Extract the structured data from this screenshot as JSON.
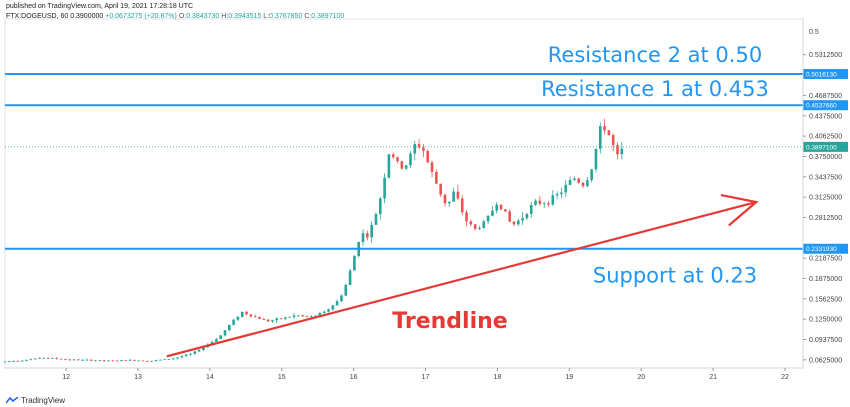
{
  "header": {
    "published": "published on TradingView.com, April 19, 2021 17:28:18 UTC",
    "symbol": "FTX:DOGEUSD, 60",
    "last": "0.3900000",
    "change": "+0.0673275 (+20.87%)",
    "o_label": "O:",
    "o": "0.3843730",
    "h_label": "H:",
    "h": "0.3943515",
    "l_label": "L:",
    "l": "0.3767850",
    "c_label": "C:",
    "c": "0.3897100"
  },
  "footer": {
    "brand": "TradingView",
    "logo": "tradingview-logo"
  },
  "colors": {
    "level": "#2196f3",
    "trend": "#e53935",
    "up": "#26a69a",
    "down": "#ef5350",
    "price": "#26a69a"
  },
  "chart_data": {
    "type": "candlestick",
    "y_ticks": [
      "0.5312500",
      "0.4687500",
      "0.4375000",
      "0.4062500",
      "0.3750000",
      "0.3437500",
      "0.3125000",
      "0.2812500",
      "0.2187500",
      "0.1875000",
      "0.1562500",
      "0.1250000",
      "0.0937500",
      "0.0625000"
    ],
    "y_top_label": "0.5",
    "ylim": [
      0.05,
      0.58
    ],
    "x_ticks": [
      "12",
      "13",
      "14",
      "15",
      "16",
      "17",
      "18",
      "19",
      "20",
      "21",
      "22"
    ],
    "levels": [
      {
        "value": 0.5016,
        "badge": "0.5016130",
        "label": "Resistance 2 at 0.50"
      },
      {
        "value": 0.4537,
        "badge": "0.4537660",
        "label": "Resistance 1 at 0.453"
      },
      {
        "value": 0.2332,
        "badge": "0.2331930",
        "label": "Support at 0.23"
      }
    ],
    "current_price": {
      "value": 0.3897,
      "badge": "0.3897100"
    },
    "trendline": {
      "label": "Trendline",
      "start": [
        13.4,
        0.068
      ],
      "end": [
        21.6,
        0.305
      ]
    },
    "x_range": [
      11.15,
      22.25
    ],
    "price_path": [
      [
        11.15,
        0.06
      ],
      [
        11.4,
        0.062
      ],
      [
        11.7,
        0.066
      ],
      [
        12.0,
        0.063
      ],
      [
        12.3,
        0.062
      ],
      [
        12.6,
        0.061
      ],
      [
        12.9,
        0.062
      ],
      [
        13.2,
        0.061
      ],
      [
        13.5,
        0.065
      ],
      [
        13.75,
        0.072
      ],
      [
        14.0,
        0.088
      ],
      [
        14.15,
        0.1
      ],
      [
        14.3,
        0.12
      ],
      [
        14.45,
        0.136
      ],
      [
        14.6,
        0.129
      ],
      [
        14.8,
        0.122
      ],
      [
        15.0,
        0.126
      ],
      [
        15.2,
        0.131
      ],
      [
        15.4,
        0.128
      ],
      [
        15.6,
        0.136
      ],
      [
        15.8,
        0.155
      ],
      [
        15.9,
        0.18
      ],
      [
        16.0,
        0.218
      ],
      [
        16.1,
        0.258
      ],
      [
        16.2,
        0.252
      ],
      [
        16.35,
        0.3
      ],
      [
        16.5,
        0.385
      ],
      [
        16.6,
        0.365
      ],
      [
        16.7,
        0.355
      ],
      [
        16.85,
        0.392
      ],
      [
        16.95,
        0.39
      ],
      [
        17.05,
        0.36
      ],
      [
        17.2,
        0.32
      ],
      [
        17.3,
        0.298
      ],
      [
        17.4,
        0.322
      ],
      [
        17.55,
        0.278
      ],
      [
        17.7,
        0.262
      ],
      [
        17.85,
        0.278
      ],
      [
        18.0,
        0.305
      ],
      [
        18.1,
        0.29
      ],
      [
        18.2,
        0.268
      ],
      [
        18.35,
        0.282
      ],
      [
        18.5,
        0.303
      ],
      [
        18.7,
        0.305
      ],
      [
        18.9,
        0.322
      ],
      [
        19.05,
        0.343
      ],
      [
        19.2,
        0.33
      ],
      [
        19.3,
        0.352
      ],
      [
        19.45,
        0.426
      ],
      [
        19.55,
        0.408
      ],
      [
        19.62,
        0.388
      ],
      [
        19.68,
        0.372
      ],
      [
        19.75,
        0.39
      ]
    ]
  }
}
